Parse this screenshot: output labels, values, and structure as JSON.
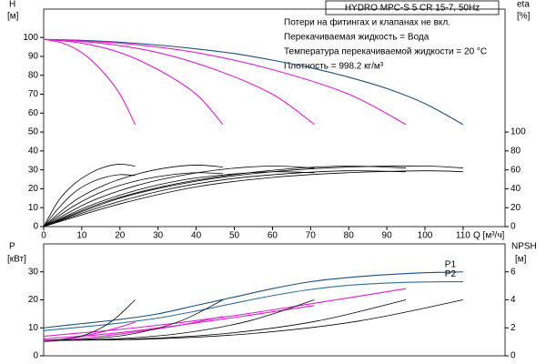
{
  "chart_data": [
    {
      "type": "line",
      "title": "HYDRO MPC-S 5 CR 15-7, 50Hz",
      "annotations": [
        "Потери на фитингах и клапанах не вкл.",
        "Перекачиваемая жидкость = Вода",
        "Температура перекачиваемой жидкости = 20 °C",
        "Плотность = 998.2 кг/м³"
      ],
      "ylabel": "H",
      "yunit": "[м]",
      "y2label": "eta",
      "y2unit": "[%]",
      "xlabel": "Q [м³/ч]",
      "xlim": [
        0,
        121
      ],
      "xticks": [
        0,
        10,
        20,
        30,
        40,
        50,
        60,
        70,
        80,
        90,
        100,
        110
      ],
      "ylim": [
        0,
        115
      ],
      "yticks": [
        0,
        10,
        20,
        30,
        40,
        50,
        60,
        70,
        80,
        90,
        100
      ],
      "y2lim": [
        0,
        230
      ],
      "y2ticks": [
        0,
        20,
        40,
        60,
        80,
        100
      ],
      "series": [
        {
          "color": "#1c4f7c",
          "x": [
            0,
            10,
            20,
            30,
            40,
            50,
            60,
            70,
            80,
            90,
            100,
            110
          ],
          "values": [
            99,
            98.5,
            97.5,
            96,
            94,
            91.5,
            88,
            84,
            79,
            73,
            65,
            54
          ]
        },
        {
          "color": "#e11fd0",
          "x": [
            0,
            5,
            10,
            15,
            20,
            24
          ],
          "values": [
            99,
            97,
            92,
            83,
            70,
            54
          ]
        },
        {
          "color": "#e11fd0",
          "x": [
            0,
            10,
            20,
            30,
            40,
            47
          ],
          "values": [
            99,
            97,
            92,
            83,
            70,
            54
          ]
        },
        {
          "color": "#e11fd0",
          "x": [
            0,
            15,
            30,
            45,
            60,
            71
          ],
          "values": [
            99,
            97,
            92,
            83,
            70,
            54
          ]
        },
        {
          "color": "#e11fd0",
          "x": [
            0,
            20,
            40,
            60,
            80,
            95
          ],
          "values": [
            99,
            97,
            92,
            83,
            70,
            54
          ]
        },
        {
          "color": "#000000",
          "axis": "y2",
          "x": [
            0,
            4,
            8,
            12,
            16,
            20,
            24
          ],
          "values": [
            0,
            28,
            45,
            56,
            63,
            66,
            64
          ]
        },
        {
          "color": "#000000",
          "axis": "y2",
          "x": [
            0,
            8,
            16,
            24,
            32,
            40,
            47
          ],
          "values": [
            0,
            27,
            44,
            55,
            62,
            65,
            63
          ]
        },
        {
          "color": "#000000",
          "axis": "y2",
          "x": [
            0,
            12,
            24,
            36,
            48,
            60,
            71
          ],
          "values": [
            0,
            26,
            43,
            54,
            61,
            64,
            62
          ]
        },
        {
          "color": "#000000",
          "axis": "y2",
          "x": [
            0,
            16,
            32,
            48,
            64,
            80,
            95
          ],
          "values": [
            0,
            26,
            43,
            54,
            61,
            64,
            62
          ]
        },
        {
          "color": "#000000",
          "axis": "y2",
          "x": [
            0,
            20,
            40,
            60,
            80,
            100,
            110
          ],
          "values": [
            0,
            30,
            48,
            58,
            63,
            64,
            62
          ]
        },
        {
          "color": "#000000",
          "axis": "y2",
          "x": [
            0,
            4,
            8,
            12,
            16,
            20,
            24
          ],
          "values": [
            0,
            20,
            36,
            46,
            52,
            55,
            54
          ]
        },
        {
          "color": "#000000",
          "axis": "y2",
          "x": [
            0,
            8,
            16,
            24,
            32,
            40,
            47
          ],
          "values": [
            0,
            22,
            38,
            48,
            54,
            57,
            56
          ]
        },
        {
          "color": "#000000",
          "axis": "y2",
          "x": [
            0,
            12,
            24,
            36,
            48,
            60,
            71
          ],
          "values": [
            0,
            22,
            38,
            49,
            55,
            58,
            57
          ]
        },
        {
          "color": "#000000",
          "axis": "y2",
          "x": [
            0,
            16,
            32,
            48,
            64,
            80,
            95
          ],
          "values": [
            0,
            22,
            39,
            50,
            56,
            59,
            58
          ]
        },
        {
          "color": "#000000",
          "axis": "y2",
          "x": [
            0,
            20,
            40,
            60,
            80,
            100,
            110
          ],
          "values": [
            0,
            24,
            42,
            52,
            57,
            59,
            58
          ]
        }
      ]
    },
    {
      "type": "line",
      "ylabel": "P",
      "yunit": "[кВт]",
      "y2label": "NPSH",
      "y2unit": "[м]",
      "xlim": [
        0,
        121
      ],
      "ylim": [
        0,
        40
      ],
      "yticks": [
        0,
        10,
        20,
        30
      ],
      "y2lim": [
        0,
        8
      ],
      "y2ticks": [
        0,
        2,
        4,
        6
      ],
      "series": [
        {
          "name": "P1",
          "color": "#1c4f7c",
          "x": [
            0,
            10,
            20,
            30,
            40,
            50,
            60,
            70,
            80,
            90,
            100,
            110
          ],
          "values": [
            10,
            11.5,
            13,
            15,
            18,
            21,
            24,
            26.5,
            28,
            29,
            29.7,
            30
          ]
        },
        {
          "name": "P2",
          "color": "#2c6fa0",
          "x": [
            0,
            10,
            20,
            30,
            40,
            50,
            60,
            70,
            80,
            90,
            100,
            110
          ],
          "values": [
            9,
            10.3,
            11.7,
            13.5,
            16,
            18.8,
            21.5,
            23.7,
            25.2,
            26,
            26.4,
            26.5
          ]
        },
        {
          "color": "#e11fd0",
          "x": [
            0,
            6,
            12,
            18,
            24
          ],
          "values": [
            5,
            6,
            7.5,
            9.5,
            12
          ]
        },
        {
          "color": "#e11fd0",
          "x": [
            0,
            12,
            24,
            36,
            47
          ],
          "values": [
            5,
            6.5,
            8.5,
            11,
            14
          ]
        },
        {
          "color": "#e11fd0",
          "x": [
            0,
            18,
            36,
            54,
            71
          ],
          "values": [
            6,
            8,
            11,
            14.5,
            18
          ]
        },
        {
          "color": "#e11fd0",
          "x": [
            0,
            24,
            48,
            72,
            95
          ],
          "values": [
            7,
            10,
            14,
            19,
            24
          ]
        },
        {
          "color": "#000000",
          "axis": "y2",
          "x": [
            0,
            6,
            12,
            18,
            24
          ],
          "values": [
            1.1,
            1.2,
            1.6,
            2.5,
            4
          ]
        },
        {
          "color": "#000000",
          "axis": "y2",
          "x": [
            0,
            12,
            24,
            36,
            47
          ],
          "values": [
            1.1,
            1.2,
            1.6,
            2.5,
            4
          ]
        },
        {
          "color": "#000000",
          "axis": "y2",
          "x": [
            0,
            18,
            36,
            54,
            71
          ],
          "values": [
            1.1,
            1.2,
            1.6,
            2.5,
            4
          ]
        },
        {
          "color": "#000000",
          "axis": "y2",
          "x": [
            0,
            24,
            48,
            72,
            95
          ],
          "values": [
            1.1,
            1.2,
            1.6,
            2.5,
            4
          ]
        },
        {
          "color": "#000000",
          "axis": "y2",
          "x": [
            0,
            28,
            55,
            83,
            110
          ],
          "values": [
            1.1,
            1.2,
            1.6,
            2.5,
            4
          ]
        }
      ]
    }
  ]
}
